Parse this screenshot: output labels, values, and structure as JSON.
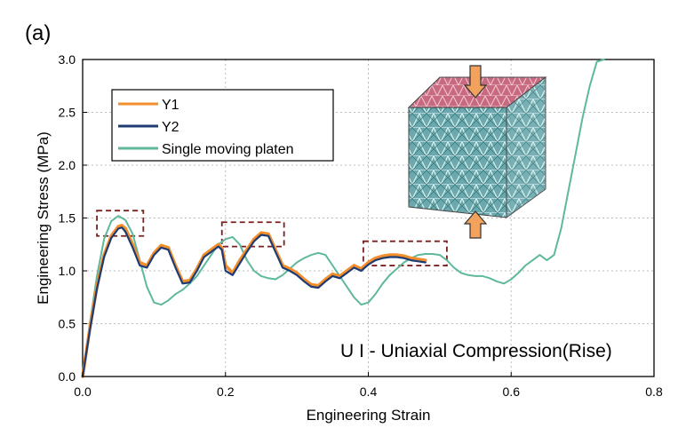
{
  "panel_label": "(a)",
  "chart_data": {
    "type": "line",
    "title": "U I - Uniaxial Compression(Rise)",
    "xlabel": "Engineering Strain",
    "ylabel": "Engineering Stress (MPa)",
    "xlim": [
      0,
      0.8
    ],
    "ylim": [
      0,
      3.0
    ],
    "xticks": [
      0.0,
      0.2,
      0.4,
      0.6,
      0.8
    ],
    "xtick_labels": [
      "0.0",
      "0.2",
      "0.4",
      "0.6",
      "0.8"
    ],
    "yticks": [
      0.0,
      0.5,
      1.0,
      1.5,
      2.0,
      2.5,
      3.0
    ],
    "ytick_labels": [
      "0.0",
      "0.5",
      "1.0",
      "1.5",
      "2.0",
      "2.5",
      "3.0"
    ],
    "grid": true,
    "legend_position": "top-left",
    "series": [
      {
        "name": "Y1",
        "color": "#f28e2b",
        "x": [
          0,
          0.01,
          0.02,
          0.03,
          0.04,
          0.05,
          0.055,
          0.06,
          0.07,
          0.08,
          0.09,
          0.1,
          0.11,
          0.12,
          0.13,
          0.14,
          0.15,
          0.16,
          0.17,
          0.18,
          0.19,
          0.195,
          0.2,
          0.21,
          0.22,
          0.23,
          0.24,
          0.25,
          0.26,
          0.27,
          0.28,
          0.29,
          0.3,
          0.31,
          0.32,
          0.33,
          0.34,
          0.35,
          0.36,
          0.37,
          0.38,
          0.39,
          0.4,
          0.41,
          0.42,
          0.43,
          0.44,
          0.45,
          0.46,
          0.47,
          0.48
        ],
        "y": [
          0,
          0.45,
          0.85,
          1.15,
          1.33,
          1.42,
          1.43,
          1.4,
          1.25,
          1.08,
          1.05,
          1.17,
          1.24,
          1.22,
          1.05,
          0.9,
          0.91,
          1.02,
          1.15,
          1.2,
          1.25,
          1.22,
          1.05,
          0.98,
          1.1,
          1.2,
          1.3,
          1.36,
          1.35,
          1.2,
          1.05,
          1.02,
          0.98,
          0.92,
          0.87,
          0.86,
          0.92,
          0.97,
          0.95,
          1.0,
          1.05,
          1.02,
          1.08,
          1.12,
          1.14,
          1.15,
          1.15,
          1.14,
          1.12,
          1.11,
          1.1
        ]
      },
      {
        "name": "Y2",
        "color": "#1f3b73",
        "x": [
          0,
          0.01,
          0.02,
          0.03,
          0.04,
          0.05,
          0.055,
          0.06,
          0.07,
          0.08,
          0.09,
          0.1,
          0.11,
          0.12,
          0.13,
          0.14,
          0.15,
          0.16,
          0.17,
          0.18,
          0.19,
          0.195,
          0.2,
          0.21,
          0.22,
          0.23,
          0.24,
          0.25,
          0.26,
          0.27,
          0.28,
          0.29,
          0.3,
          0.31,
          0.32,
          0.33,
          0.34,
          0.35,
          0.36,
          0.37,
          0.38,
          0.39,
          0.4,
          0.41,
          0.42,
          0.43,
          0.44,
          0.45,
          0.46,
          0.47,
          0.48
        ],
        "y": [
          0,
          0.43,
          0.83,
          1.13,
          1.31,
          1.4,
          1.41,
          1.37,
          1.22,
          1.05,
          1.03,
          1.15,
          1.22,
          1.2,
          1.03,
          0.88,
          0.89,
          1.0,
          1.13,
          1.18,
          1.23,
          1.2,
          1.0,
          0.96,
          1.07,
          1.18,
          1.28,
          1.34,
          1.33,
          1.18,
          1.03,
          1.0,
          0.96,
          0.9,
          0.85,
          0.84,
          0.9,
          0.95,
          0.93,
          0.98,
          1.03,
          1.0,
          1.06,
          1.1,
          1.12,
          1.13,
          1.13,
          1.12,
          1.1,
          1.09,
          1.08
        ]
      },
      {
        "name": "Single moving platen",
        "color": "#5fb89c",
        "x": [
          0,
          0.01,
          0.02,
          0.03,
          0.04,
          0.05,
          0.06,
          0.07,
          0.08,
          0.09,
          0.1,
          0.11,
          0.12,
          0.13,
          0.14,
          0.15,
          0.16,
          0.17,
          0.18,
          0.19,
          0.2,
          0.21,
          0.22,
          0.23,
          0.24,
          0.25,
          0.26,
          0.27,
          0.28,
          0.29,
          0.3,
          0.31,
          0.32,
          0.33,
          0.34,
          0.35,
          0.36,
          0.37,
          0.38,
          0.39,
          0.4,
          0.41,
          0.42,
          0.43,
          0.44,
          0.45,
          0.46,
          0.47,
          0.48,
          0.49,
          0.5,
          0.51,
          0.52,
          0.53,
          0.54,
          0.55,
          0.56,
          0.57,
          0.58,
          0.59,
          0.6,
          0.61,
          0.62,
          0.63,
          0.64,
          0.65,
          0.66,
          0.67,
          0.68,
          0.69,
          0.7,
          0.71,
          0.72,
          0.73
        ],
        "y": [
          0,
          0.5,
          0.95,
          1.3,
          1.47,
          1.52,
          1.48,
          1.35,
          1.1,
          0.85,
          0.7,
          0.68,
          0.72,
          0.78,
          0.82,
          0.88,
          0.95,
          1.05,
          1.15,
          1.25,
          1.3,
          1.32,
          1.25,
          1.1,
          1.0,
          0.95,
          0.93,
          0.92,
          0.96,
          1.02,
          1.08,
          1.12,
          1.15,
          1.17,
          1.15,
          1.05,
          0.95,
          0.85,
          0.75,
          0.68,
          0.7,
          0.78,
          0.88,
          0.96,
          1.02,
          1.08,
          1.12,
          1.15,
          1.16,
          1.16,
          1.15,
          1.1,
          1.03,
          0.98,
          0.96,
          0.95,
          0.95,
          0.93,
          0.9,
          0.88,
          0.92,
          0.98,
          1.05,
          1.1,
          1.15,
          1.1,
          1.15,
          1.4,
          1.75,
          2.1,
          2.45,
          2.75,
          2.98,
          3.0
        ]
      }
    ],
    "highlight_boxes": [
      {
        "x0": 0.02,
        "x1": 0.085,
        "y0": 1.33,
        "y1": 1.57
      },
      {
        "x0": 0.195,
        "x1": 0.282,
        "y0": 1.23,
        "y1": 1.46
      },
      {
        "x0": 0.393,
        "x1": 0.51,
        "y0": 1.05,
        "y1": 1.28
      }
    ]
  }
}
